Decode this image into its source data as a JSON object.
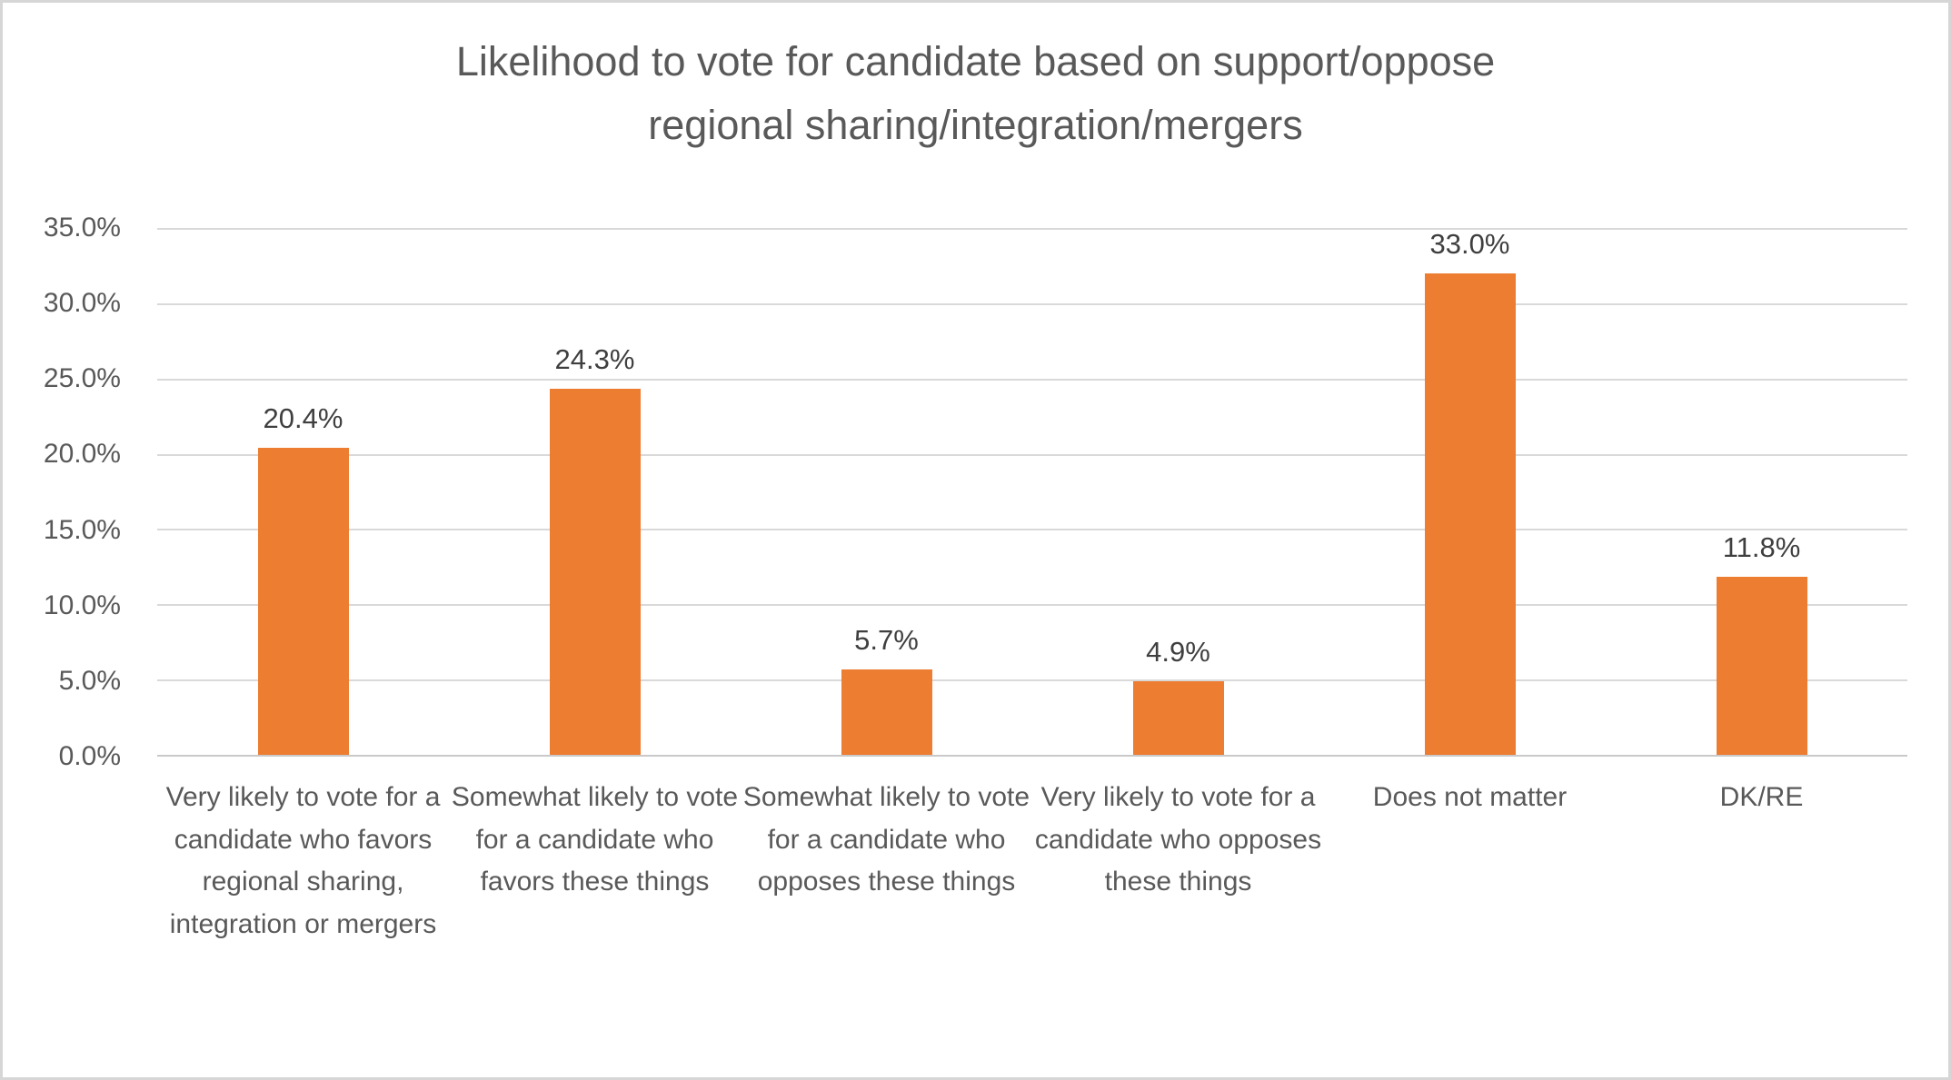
{
  "chart_data": {
    "type": "bar",
    "title": "Likelihood to vote for candidate based on support/oppose regional sharing/integration/mergers",
    "title_lines": [
      "Likelihood to vote for candidate based on support/oppose",
      "regional sharing/integration/mergers"
    ],
    "categories": [
      "Very likely to vote for a candidate who favors regional sharing, integration or mergers",
      "Somewhat likely to vote for a candidate who favors these things",
      "Somewhat likely to vote for a candidate who opposes these things",
      "Very likely to vote for a candidate who opposes these things",
      "Does not matter",
      "DK/RE"
    ],
    "values": [
      20.4,
      24.3,
      5.7,
      4.9,
      33.0,
      11.8
    ],
    "data_labels": [
      "20.4%",
      "24.3%",
      "5.7%",
      "4.9%",
      "33.0%",
      "11.8%"
    ],
    "xlabel": "",
    "ylabel": "",
    "ylim": [
      0,
      35
    ],
    "ytick_step": 5,
    "yticks": [
      "35.0%",
      "30.0%",
      "25.0%",
      "20.0%",
      "15.0%",
      "10.0%",
      "5.0%",
      "0.0%"
    ],
    "grid": true,
    "legend": false,
    "colors": {
      "bar": "#ED7D31",
      "gridline": "#D9D9D9",
      "axis_line": "#C9C9C9",
      "axis_text": "#595959",
      "data_label_text": "#3F3F3F",
      "title_text": "#595959",
      "background": "#FFFFFF",
      "frame_border": "#D6D6D6"
    }
  }
}
